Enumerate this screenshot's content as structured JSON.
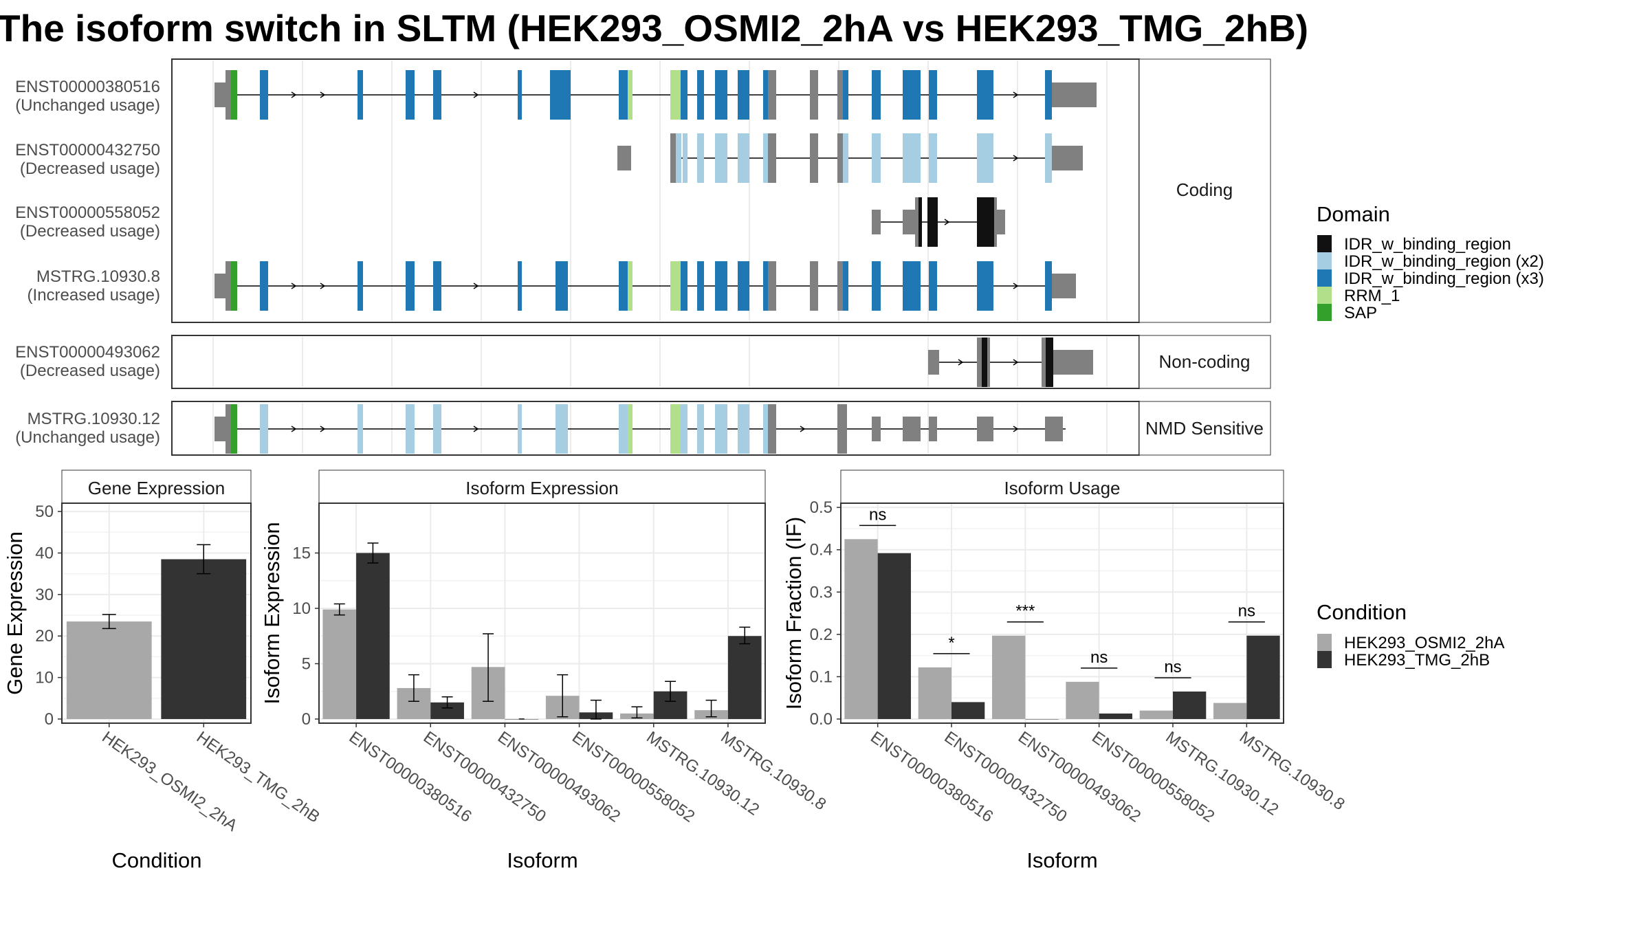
{
  "title": "The isoform switch in SLTM (HEK293_OSMI2_2hA vs HEK293_TMG_2hB)",
  "colors": {
    "IDR_w_binding_region": "#111111",
    "IDR_w_binding_region (x2)": "#a6cee3",
    "IDR_w_binding_region (x3)": "#1f78b4",
    "RRM_1": "#b2df8a",
    "SAP": "#33a02c",
    "utr": "#808080",
    "cond_a": "#a8a8a8",
    "cond_b": "#333333"
  },
  "structure": {
    "panels": [
      {
        "strip": "Coding",
        "transcripts": [
          {
            "id": "ENST00000380516",
            "usage": "(Unchanged usage)"
          },
          {
            "id": "ENST00000432750",
            "usage": "(Decreased usage)"
          },
          {
            "id": "ENST00000558052",
            "usage": "(Decreased usage)"
          },
          {
            "id": "MSTRG.10930.8",
            "usage": "(Increased usage)"
          }
        ]
      },
      {
        "strip": "Non-coding",
        "transcripts": [
          {
            "id": "ENST00000493062",
            "usage": "(Decreased usage)"
          }
        ]
      },
      {
        "strip": "NMD Sensitive",
        "transcripts": [
          {
            "id": "MSTRG.10930.12",
            "usage": "(Unchanged usage)"
          }
        ]
      }
    ]
  },
  "domain_legend": {
    "title": "Domain",
    "items": [
      "IDR_w_binding_region",
      "IDR_w_binding_region (x2)",
      "IDR_w_binding_region (x3)",
      "RRM_1",
      "SAP"
    ]
  },
  "condition_legend": {
    "title": "Condition",
    "items": [
      "HEK293_OSMI2_2hA",
      "HEK293_TMG_2hB"
    ]
  },
  "chart_data": [
    {
      "type": "bar",
      "title": "Gene Expression",
      "xlabel": "Condition",
      "ylabel": "Gene Expression",
      "ylim": [
        0,
        52
      ],
      "yticks": [
        0,
        10,
        20,
        30,
        40,
        50
      ],
      "categories": [
        "HEK293_OSMI2_2hA",
        "HEK293_TMG_2hB"
      ],
      "values": [
        23.5,
        38.5
      ],
      "errors": [
        [
          21.8,
          25.2
        ],
        [
          35.0,
          42.0
        ]
      ]
    },
    {
      "type": "bar",
      "title": "Isoform Expression",
      "xlabel": "Isoform",
      "ylabel": "Isoform Expression",
      "ylim": [
        0,
        19.5
      ],
      "yticks": [
        0,
        5,
        10,
        15
      ],
      "categories": [
        "ENST00000380516",
        "ENST00000432750",
        "ENST00000493062",
        "ENST00000558052",
        "MSTRG.10930.12",
        "MSTRG.10930.8"
      ],
      "series": [
        {
          "name": "HEK293_OSMI2_2hA",
          "values": [
            9.9,
            2.8,
            4.7,
            2.1,
            0.5,
            0.8
          ],
          "errors": [
            [
              9.4,
              10.4
            ],
            [
              1.6,
              4.0
            ],
            [
              1.6,
              7.7
            ],
            [
              0.2,
              4.0
            ],
            [
              0.1,
              1.1
            ],
            [
              0.2,
              1.7
            ]
          ]
        },
        {
          "name": "HEK293_TMG_2hB",
          "values": [
            15.0,
            1.5,
            0.0,
            0.6,
            2.5,
            7.5
          ],
          "errors": [
            [
              14.1,
              15.9
            ],
            [
              1.0,
              2.0
            ],
            [
              0.0,
              0.0
            ],
            [
              0.0,
              1.7
            ],
            [
              1.6,
              3.4
            ],
            [
              6.8,
              8.3
            ]
          ]
        }
      ]
    },
    {
      "type": "bar",
      "title": "Isoform Usage",
      "xlabel": "Isoform",
      "ylabel": "Isoform Fraction (IF)",
      "ylim": [
        0,
        0.51
      ],
      "yticks": [
        0.0,
        0.1,
        0.2,
        0.3,
        0.4,
        0.5
      ],
      "categories": [
        "ENST00000380516",
        "ENST00000432750",
        "ENST00000493062",
        "ENST00000558052",
        "MSTRG.10930.12",
        "MSTRG.10930.8"
      ],
      "series": [
        {
          "name": "HEK293_OSMI2_2hA",
          "values": [
            0.425,
            0.122,
            0.197,
            0.088,
            0.02,
            0.038
          ]
        },
        {
          "name": "HEK293_TMG_2hB",
          "values": [
            0.392,
            0.04,
            0.0,
            0.013,
            0.065,
            0.197
          ]
        }
      ],
      "significance": [
        "ns",
        "*",
        "***",
        "ns",
        "ns",
        "ns"
      ]
    }
  ]
}
